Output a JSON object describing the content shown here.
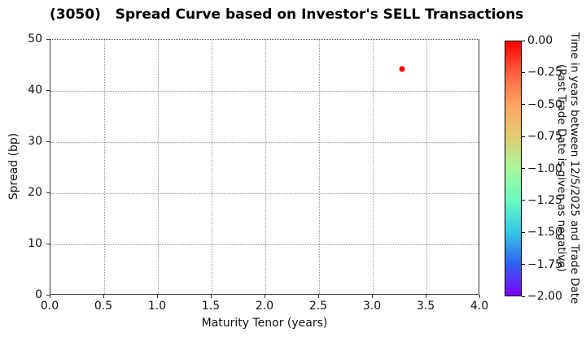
{
  "chart_data": {
    "type": "scatter",
    "title": "(3050)   Spread Curve based on Investor's SELL Transactions",
    "xlabel": "Maturity Tenor (years)",
    "ylabel": "Spread (bp)",
    "xlim": [
      0.0,
      4.0
    ],
    "ylim": [
      0,
      50
    ],
    "x_ticks": [
      0.0,
      0.5,
      1.0,
      1.5,
      2.0,
      2.5,
      3.0,
      3.5,
      4.0
    ],
    "x_tick_labels": [
      "0.0",
      "0.5",
      "1.0",
      "1.5",
      "2.0",
      "2.5",
      "3.0",
      "3.5",
      "4.0"
    ],
    "y_ticks": [
      0,
      10,
      20,
      30,
      40,
      50
    ],
    "y_tick_labels": [
      "0",
      "10",
      "20",
      "30",
      "40",
      "50"
    ],
    "grid": true,
    "grid_style": "dotted",
    "legend": false,
    "points": [
      {
        "x": 3.27,
        "y": 44.3,
        "value": 0.0,
        "color": "#ff0000"
      }
    ],
    "colorbar": {
      "label_line1": "Time in years between 12/5/2025 and Trade Date",
      "label_line2": "(Past Trade Date is given as negative)",
      "vmax": 0.0,
      "vmin": -2.0,
      "tick_values": [
        0.0,
        -0.25,
        -0.5,
        -0.75,
        -1.0,
        -1.25,
        -1.5,
        -1.75,
        -2.0
      ],
      "tick_labels": [
        "0.00",
        "−0.25",
        "−0.50",
        "−0.75",
        "−1.00",
        "−1.25",
        "−1.50",
        "−1.75",
        "−2.00"
      ],
      "colormap": "rainbow (red = 0.00 at top, violet = −2.00 at bottom)",
      "gradient_stops": [
        "#ff0000",
        "#ff6040",
        "#fda55f",
        "#e2cc72",
        "#a8f79a",
        "#69fcc0",
        "#35c8e8",
        "#2e62f1",
        "#8000ff"
      ]
    },
    "colors": {
      "background": "#ffffff",
      "axis": "#3a3a3a",
      "grid": "#999999",
      "text": "#111111",
      "point": "#ff0000"
    }
  }
}
